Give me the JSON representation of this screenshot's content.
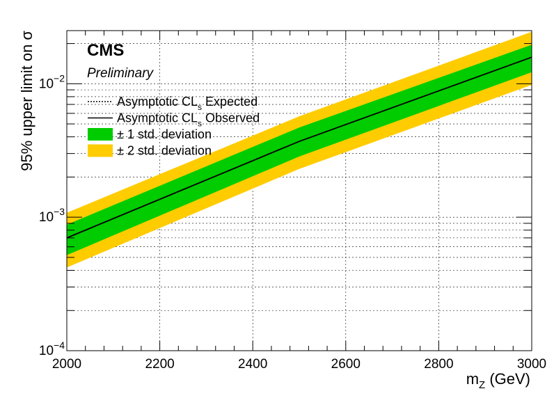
{
  "chart_data": {
    "type": "line",
    "experiment_label": "CMS",
    "status_label": "Preliminary",
    "xlabel": {
      "main": "m",
      "sub": "Z",
      "unit": " (GeV)"
    },
    "ylabel": "95% upper limit on  σ",
    "xlim": [
      2000,
      3000
    ],
    "ylim": [
      0.0001,
      0.025
    ],
    "yscale": "log",
    "grid": true,
    "x_ticks": [
      2000,
      2200,
      2400,
      2600,
      2800,
      3000
    ],
    "x_tick_labels": [
      "2000",
      "2200",
      "2400",
      "2600",
      "2800",
      "3000"
    ],
    "y_ticks": [
      {
        "base": "10",
        "exp": "−4",
        "value": 0.0001
      },
      {
        "base": "10",
        "exp": "−3",
        "value": 0.001
      },
      {
        "base": "10",
        "exp": "−2",
        "value": 0.01
      }
    ],
    "x": [
      2000,
      2500,
      3000
    ],
    "expected": [
      0.0007,
      0.0037,
      0.0158
    ],
    "observed": [
      0.0007,
      0.0037,
      0.0158
    ],
    "band_1sigma": {
      "low": [
        0.00052,
        0.00285,
        0.0122
      ],
      "high": [
        0.00088,
        0.0047,
        0.0196
      ]
    },
    "band_2sigma": {
      "low": [
        0.00042,
        0.0023,
        0.0098
      ],
      "high": [
        0.00108,
        0.0057,
        0.0245
      ]
    },
    "legend": {
      "position": "top-left",
      "entries": [
        {
          "kind": "dotted-line",
          "pre": "Asymptotic CL",
          "sub": "s",
          "post": " Expected"
        },
        {
          "kind": "solid-line",
          "pre": "Asymptotic CL",
          "sub": "s",
          "post": " Observed"
        },
        {
          "kind": "fill",
          "color": "#00cc00",
          "pre": "± 1 std. deviation",
          "sub": "",
          "post": ""
        },
        {
          "kind": "fill",
          "color": "#ffcc00",
          "pre": "± 2 std. deviation",
          "sub": "",
          "post": ""
        }
      ]
    },
    "colors": {
      "band_1sigma": "#00cc00",
      "band_2sigma": "#ffcc00",
      "line": "#000000"
    }
  }
}
